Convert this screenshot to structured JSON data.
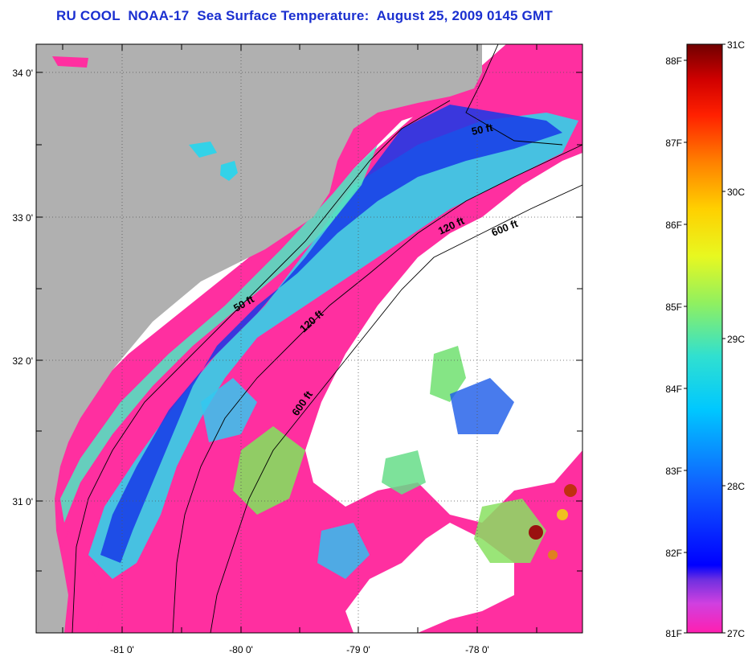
{
  "title": "RU COOL  NOAA-17  Sea Surface Temperature:  August 25, 2009 0145 GMT",
  "map": {
    "lon_range": [
      -81.7,
      -77.2
    ],
    "lat_range": [
      30.2,
      34.2
    ],
    "lon_labels": [
      "-81 0'",
      "-80 0'",
      "-79 0'",
      "-78 0'"
    ],
    "lat_labels": [
      "34 0'",
      "33 0'",
      "32 0'",
      "31 0'"
    ],
    "contours": [
      {
        "label": "50 ft",
        "instances": 2
      },
      {
        "label": "120 ft",
        "instances": 2
      },
      {
        "label": "600 ft",
        "instances": 2
      }
    ],
    "colors": {
      "land": "#b0b0b0",
      "cloud": "#ffffff",
      "warm_water": "#ff2fa0",
      "cool_water": "#1838e8"
    }
  },
  "colorbar": {
    "fahrenheit_labels": [
      "88F",
      "87F",
      "86F",
      "85F",
      "84F",
      "83F",
      "82F",
      "81F"
    ],
    "celsius_labels": [
      "31C",
      "30C",
      "29C",
      "28C",
      "27C"
    ],
    "range_c": [
      27,
      31
    ]
  }
}
